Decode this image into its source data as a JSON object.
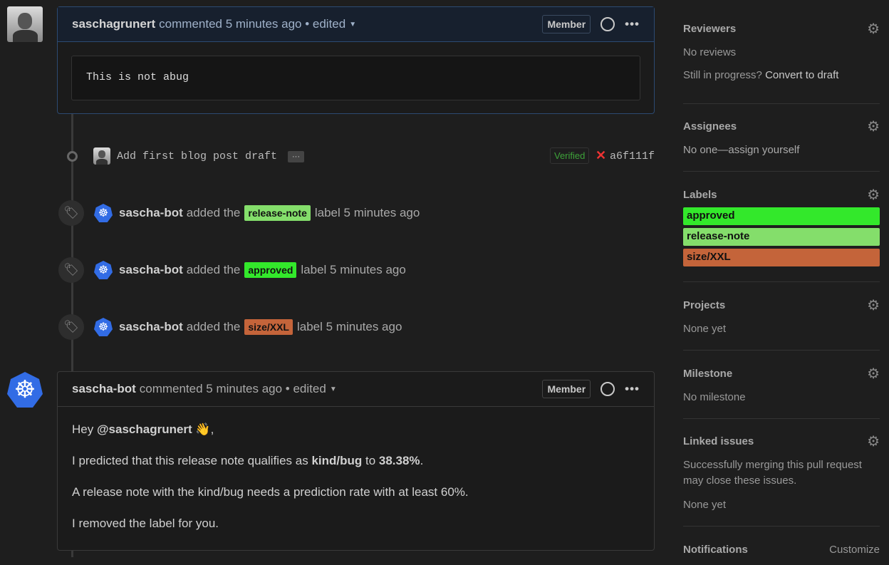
{
  "comment1": {
    "author": "saschagrunert",
    "meta": "commented 5 minutes ago • edited",
    "badge": "Member",
    "code": "This is not abug"
  },
  "commit": {
    "message": "Add first blog post draft",
    "more": "···",
    "verified": "Verified",
    "status_icon": "x-icon",
    "sha": "a6f111f"
  },
  "events": [
    {
      "actor": "sascha-bot",
      "pre": "added the",
      "label": "release-note",
      "color": "#84de6b",
      "post": "label 5 minutes ago"
    },
    {
      "actor": "sascha-bot",
      "pre": "added the",
      "label": "approved",
      "color": "#33e82b",
      "post": "label 5 minutes ago"
    },
    {
      "actor": "sascha-bot",
      "pre": "added the",
      "label": "size/XXL",
      "color": "#c4643a",
      "post": "label 5 minutes ago"
    }
  ],
  "comment2": {
    "author": "sascha-bot",
    "meta": "commented 5 minutes ago • edited",
    "badge": "Member",
    "p1_pre": "Hey ",
    "p1_mention": "@saschagrunert",
    "p1_post": " 👋,",
    "p2_pre": "I predicted that this release note qualifies as ",
    "p2_kind": "kind/bug",
    "p2_mid": " to ",
    "p2_pct": "38.38%",
    "p2_post": ".",
    "p3": "A release note with the kind/bug needs a prediction rate with at least 60%.",
    "p4": "I removed the label for you."
  },
  "sidebar": {
    "reviewers": {
      "title": "Reviewers",
      "text": "No reviews",
      "draft_pre": "Still in progress? ",
      "draft_link": "Convert to draft"
    },
    "assignees": {
      "title": "Assignees",
      "text": "No one—assign yourself"
    },
    "labels": {
      "title": "Labels",
      "items": [
        {
          "name": "approved",
          "color": "#33e82b"
        },
        {
          "name": "release-note",
          "color": "#84de6b"
        },
        {
          "name": "size/XXL",
          "color": "#c4643a"
        }
      ]
    },
    "projects": {
      "title": "Projects",
      "text": "None yet"
    },
    "milestone": {
      "title": "Milestone",
      "text": "No milestone"
    },
    "linked": {
      "title": "Linked issues",
      "text": "Successfully merging this pull request may close these issues.",
      "none": "None yet"
    },
    "notifications": {
      "title": "Notifications",
      "action": "Customize"
    }
  }
}
